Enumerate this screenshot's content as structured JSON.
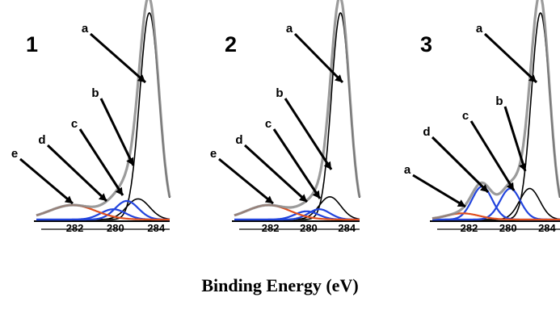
{
  "xlabel": "Binding Energy (eV)",
  "chart_data": [
    {
      "panel": "1",
      "type": "line",
      "x_ticks": [
        "282",
        "280",
        "284"
      ],
      "peak_labels": [
        "a",
        "b",
        "c",
        "d",
        "e"
      ],
      "series": [
        {
          "label": "a",
          "color": "#000000",
          "center": 284.6,
          "fwhm": 1.0,
          "height": 1.0
        },
        {
          "label": "b",
          "color": "#000000",
          "center": 284.1,
          "fwhm": 1.2,
          "height": 0.1
        },
        {
          "label": "c",
          "color": "#2244dd",
          "center": 283.6,
          "fwhm": 1.2,
          "height": 0.09
        },
        {
          "label": "d",
          "color": "#2244dd",
          "center": 283.0,
          "fwhm": 1.3,
          "height": 0.05
        },
        {
          "label": "e",
          "color": "#e05020",
          "center": 281.2,
          "fwhm": 2.4,
          "height": 0.07
        }
      ]
    },
    {
      "panel": "2",
      "type": "line",
      "x_ticks": [
        "282",
        "280",
        "284"
      ],
      "peak_labels": [
        "a",
        "b",
        "c",
        "d",
        "e"
      ],
      "series": [
        {
          "label": "a",
          "color": "#000000",
          "center": 284.6,
          "fwhm": 1.0,
          "height": 1.0
        },
        {
          "label": "b",
          "color": "#000000",
          "center": 284.1,
          "fwhm": 1.2,
          "height": 0.11
        },
        {
          "label": "c",
          "color": "#2244dd",
          "center": 283.6,
          "fwhm": 1.2,
          "height": 0.05
        },
        {
          "label": "d",
          "color": "#2244dd",
          "center": 283.0,
          "fwhm": 1.3,
          "height": 0.04
        },
        {
          "label": "e",
          "color": "#e05020",
          "center": 281.2,
          "fwhm": 2.4,
          "height": 0.07
        }
      ]
    },
    {
      "panel": "3",
      "type": "line",
      "x_ticks": [
        "282",
        "280",
        "284"
      ],
      "peak_labels": [
        "a",
        "b",
        "c",
        "d",
        "a"
      ],
      "series": [
        {
          "label": "a",
          "color": "#000000",
          "center": 284.6,
          "fwhm": 1.0,
          "height": 1.0
        },
        {
          "label": "b",
          "color": "#000000",
          "center": 284.1,
          "fwhm": 1.1,
          "height": 0.15
        },
        {
          "label": "c",
          "color": "#2244dd",
          "center": 283.2,
          "fwhm": 1.1,
          "height": 0.15
        },
        {
          "label": "d",
          "color": "#2244dd",
          "center": 281.9,
          "fwhm": 1.1,
          "height": 0.16
        },
        {
          "label": "a",
          "color": "#e05020",
          "center": 281.0,
          "fwhm": 1.8,
          "height": 0.03
        }
      ]
    }
  ]
}
